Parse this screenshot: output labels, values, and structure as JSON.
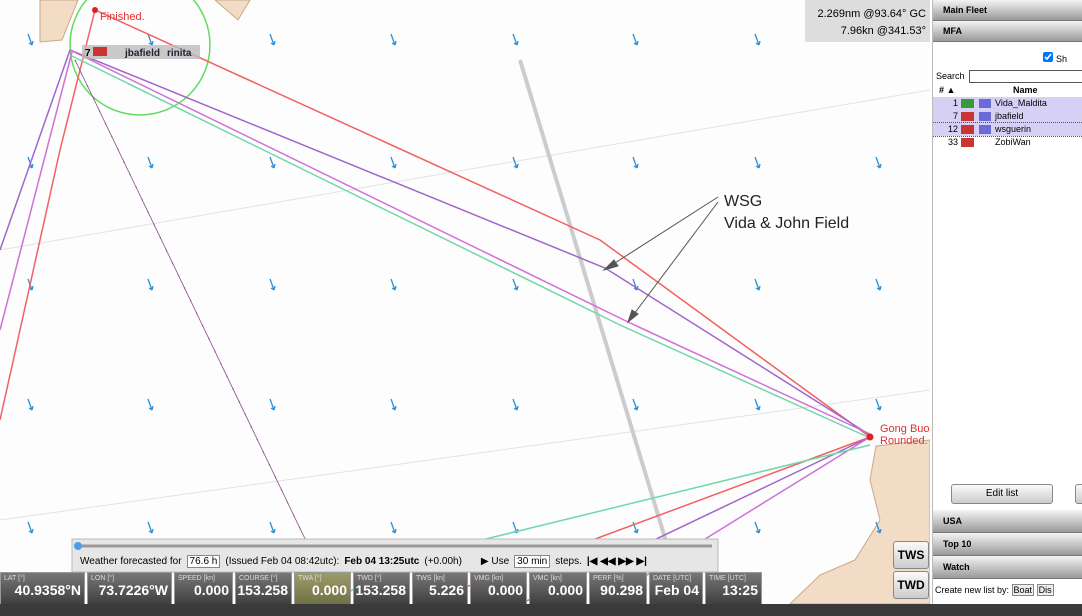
{
  "map": {
    "finish_label": "Finished.",
    "boat_label": {
      "number": "7",
      "name": "jbafield",
      "overlap": "rinita"
    },
    "info": [
      "2.269nm @93.64° GC",
      "7.96kn @341.53°"
    ],
    "annotations": [
      "WSG",
      "Vida & John Field"
    ],
    "mark_label": {
      "name": "Gong Buo",
      "status": "Rounded."
    }
  },
  "panel": {
    "groups_top": [
      "Main Fleet",
      "MFA"
    ],
    "show": "Sh",
    "search": "Search",
    "columns": [
      "# ▲",
      "Name"
    ],
    "rows": [
      {
        "rank": "1",
        "name": "Vida_Maldita"
      },
      {
        "rank": "7",
        "name": "jbafield"
      },
      {
        "rank": "12",
        "name": "wsguerin"
      },
      {
        "rank": "33",
        "name": "ZobiWan"
      }
    ],
    "edit_button": "Edit list",
    "groups_bottom": [
      "USA",
      "Top 10",
      "Watch"
    ],
    "create": "Create new list by:",
    "create_buttons": [
      "Boat",
      "Dis"
    ]
  },
  "weather": {
    "prefix": "Weather forecasted for",
    "hours": "76.6 h",
    "issued": "(Issued Feb 04 08:42utc):",
    "time": "Feb 04 13:25utc",
    "offset": "(+0.00h)",
    "use": "▶ Use",
    "step": "30 min",
    "steps": "steps.",
    "controls": "|◀ ◀◀ ▶▶ ▶|"
  },
  "buttons": [
    "TWS",
    "TWD"
  ],
  "instruments": [
    {
      "label": "LAT [°]",
      "value": "40.9358°N"
    },
    {
      "label": "LON [°]",
      "value": "73.7226°W"
    },
    {
      "label": "SPEED [kn]",
      "value": "0.000"
    },
    {
      "label": "COURSE [°]",
      "value": "153.258"
    },
    {
      "label": "TWA [°]",
      "value": "0.000"
    },
    {
      "label": "TWD [°]",
      "value": "153.258"
    },
    {
      "label": "TWS [kn]",
      "value": "5.226"
    },
    {
      "label": "VMG [kn]",
      "value": "0.000"
    },
    {
      "label": "VMC [kn]",
      "value": "0.000"
    },
    {
      "label": "PERF [%]",
      "value": "90.298"
    },
    {
      "label": "DATE [UTC]",
      "value": "Feb 04"
    },
    {
      "label": "TIME [UTC]",
      "value": "13:25"
    }
  ]
}
